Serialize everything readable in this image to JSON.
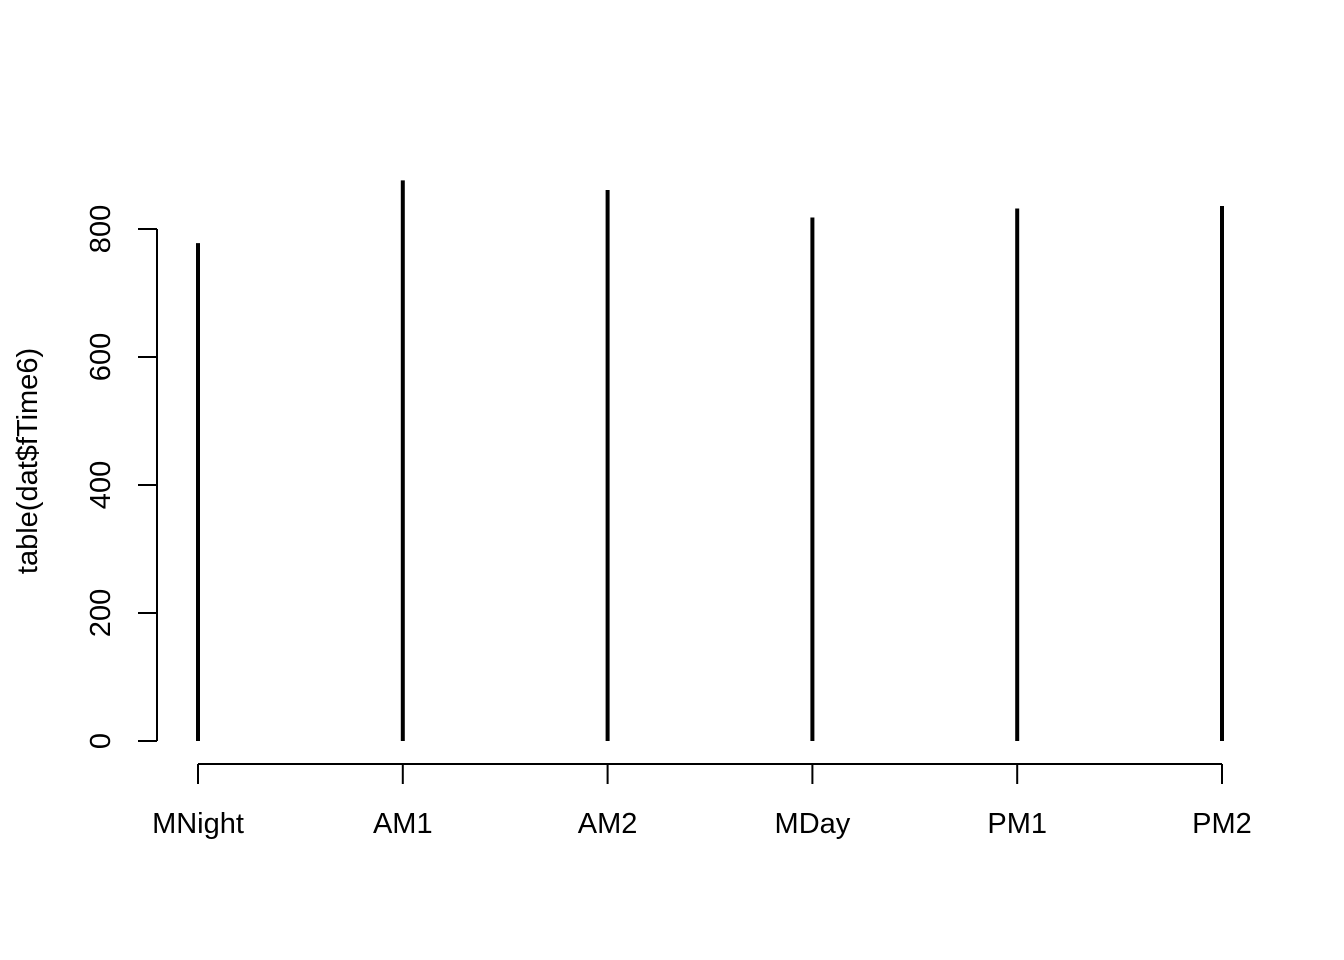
{
  "chart_data": {
    "type": "bar",
    "style": "histogram-lines",
    "categories": [
      "MNight",
      "AM1",
      "AM2",
      "MDay",
      "PM1",
      "PM2"
    ],
    "values": [
      778,
      876,
      861,
      818,
      832,
      836
    ],
    "title": "",
    "xlabel": "",
    "ylabel": "table(dat$fTime6)",
    "yticks": [
      0,
      200,
      400,
      600,
      800
    ],
    "ylim": [
      0,
      876
    ],
    "grid": false,
    "legend": "none",
    "bar_color": "#000000"
  }
}
